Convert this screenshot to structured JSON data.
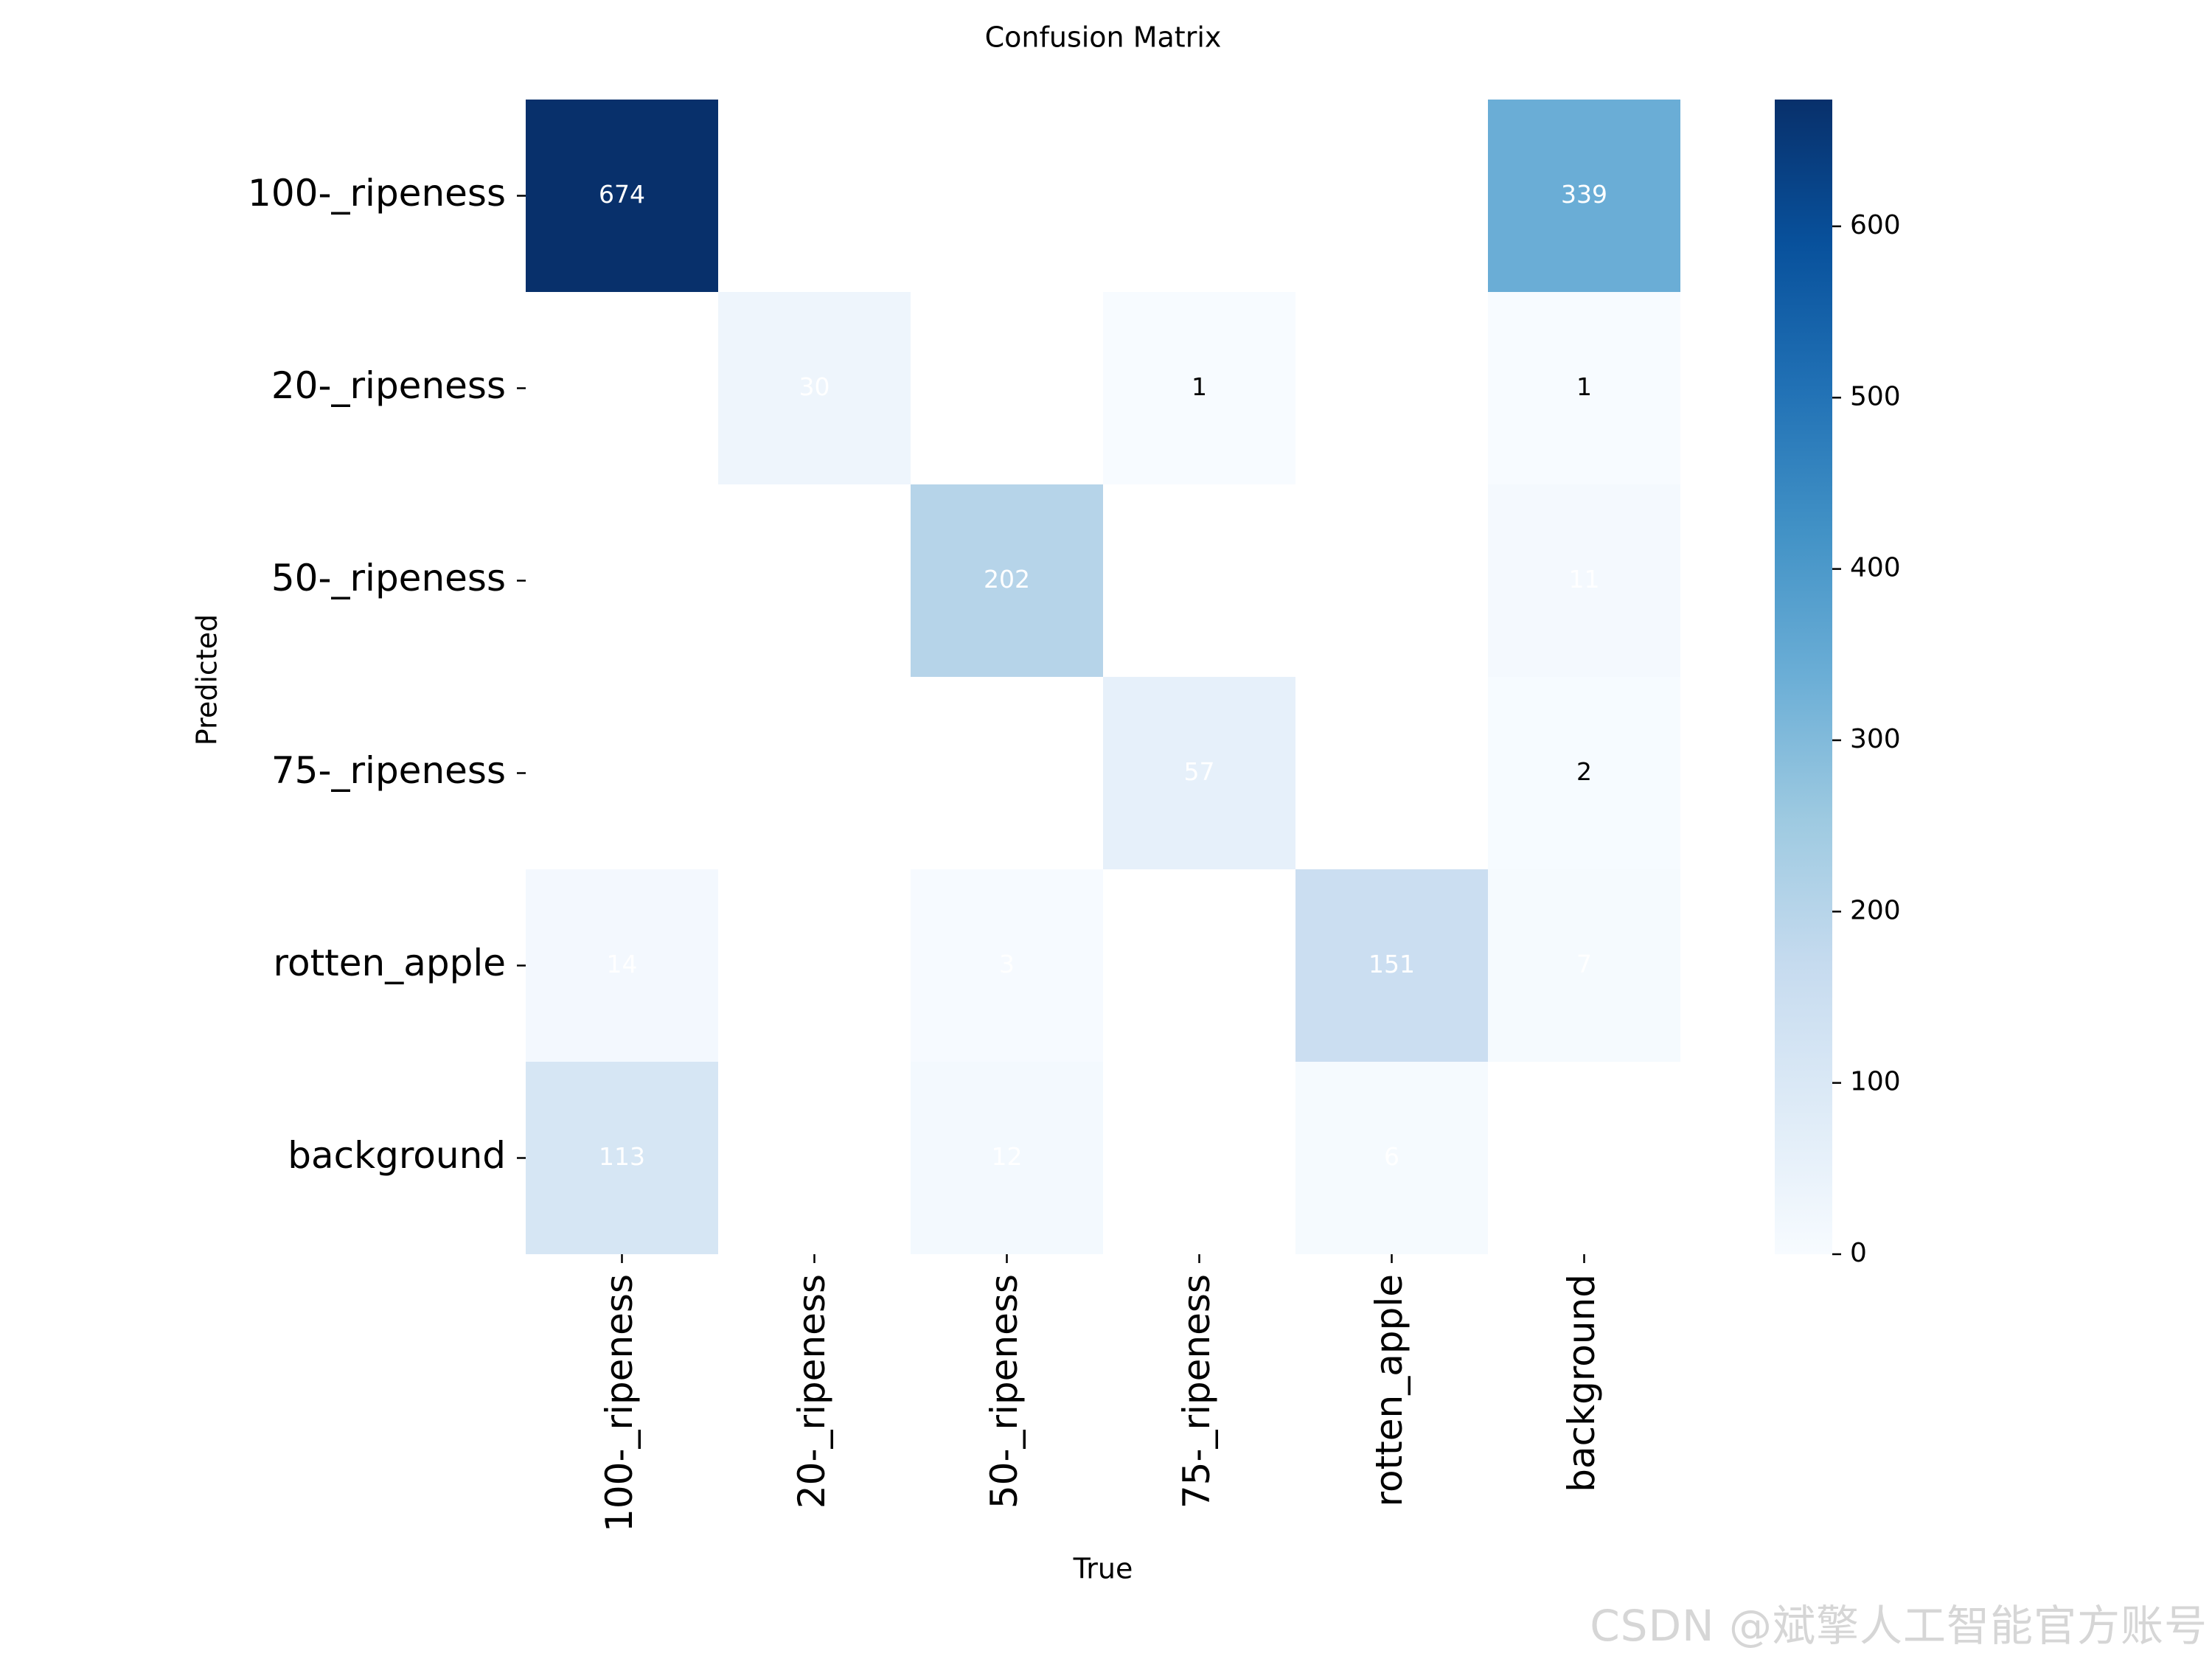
{
  "chart_data": {
    "type": "heatmap",
    "title": "Confusion Matrix",
    "xlabel": "True",
    "ylabel": "Predicted",
    "row_labels": [
      "100-_ripeness",
      "20-_ripeness",
      "50-_ripeness",
      "75-_ripeness",
      "rotten_apple",
      "background"
    ],
    "col_labels": [
      "100-_ripeness",
      "20-_ripeness",
      "50-_ripeness",
      "75-_ripeness",
      "rotten_apple",
      "background"
    ],
    "values": [
      [
        674,
        null,
        null,
        null,
        null,
        339
      ],
      [
        null,
        30,
        null,
        1,
        null,
        1
      ],
      [
        null,
        null,
        202,
        null,
        null,
        11
      ],
      [
        null,
        null,
        null,
        57,
        null,
        2
      ],
      [
        14,
        null,
        3,
        null,
        151,
        7
      ],
      [
        113,
        null,
        12,
        null,
        6,
        null
      ]
    ],
    "cell_labels": [
      [
        "674",
        "",
        "",
        "",
        "",
        "339"
      ],
      [
        "",
        "30",
        "",
        "1",
        "",
        "1"
      ],
      [
        "",
        "",
        "202",
        "",
        "",
        "11"
      ],
      [
        "",
        "",
        "",
        "57",
        "",
        "2"
      ],
      [
        "14",
        "",
        "3",
        "",
        "151",
        "7"
      ],
      [
        "113",
        "",
        "12",
        "",
        "6",
        ""
      ]
    ],
    "colorbar": {
      "min": 0,
      "max": 674,
      "ticks": [
        0,
        100,
        200,
        300,
        400,
        500,
        600
      ],
      "tick_labels": [
        "0",
        "100",
        "200",
        "300",
        "400",
        "500",
        "600"
      ],
      "colormap": "Blues"
    },
    "grid": false,
    "legend": "right colorbar"
  },
  "watermark": "CSDN @斌擎人工智能官方账号",
  "colors": {
    "background": "#ffffff",
    "text": "#000000",
    "cell_text_dark_bg": "#ffffff",
    "cell_text_light_bg": "#000000",
    "cmap_low": "#f7fbff",
    "cmap_high": "#08306b"
  }
}
